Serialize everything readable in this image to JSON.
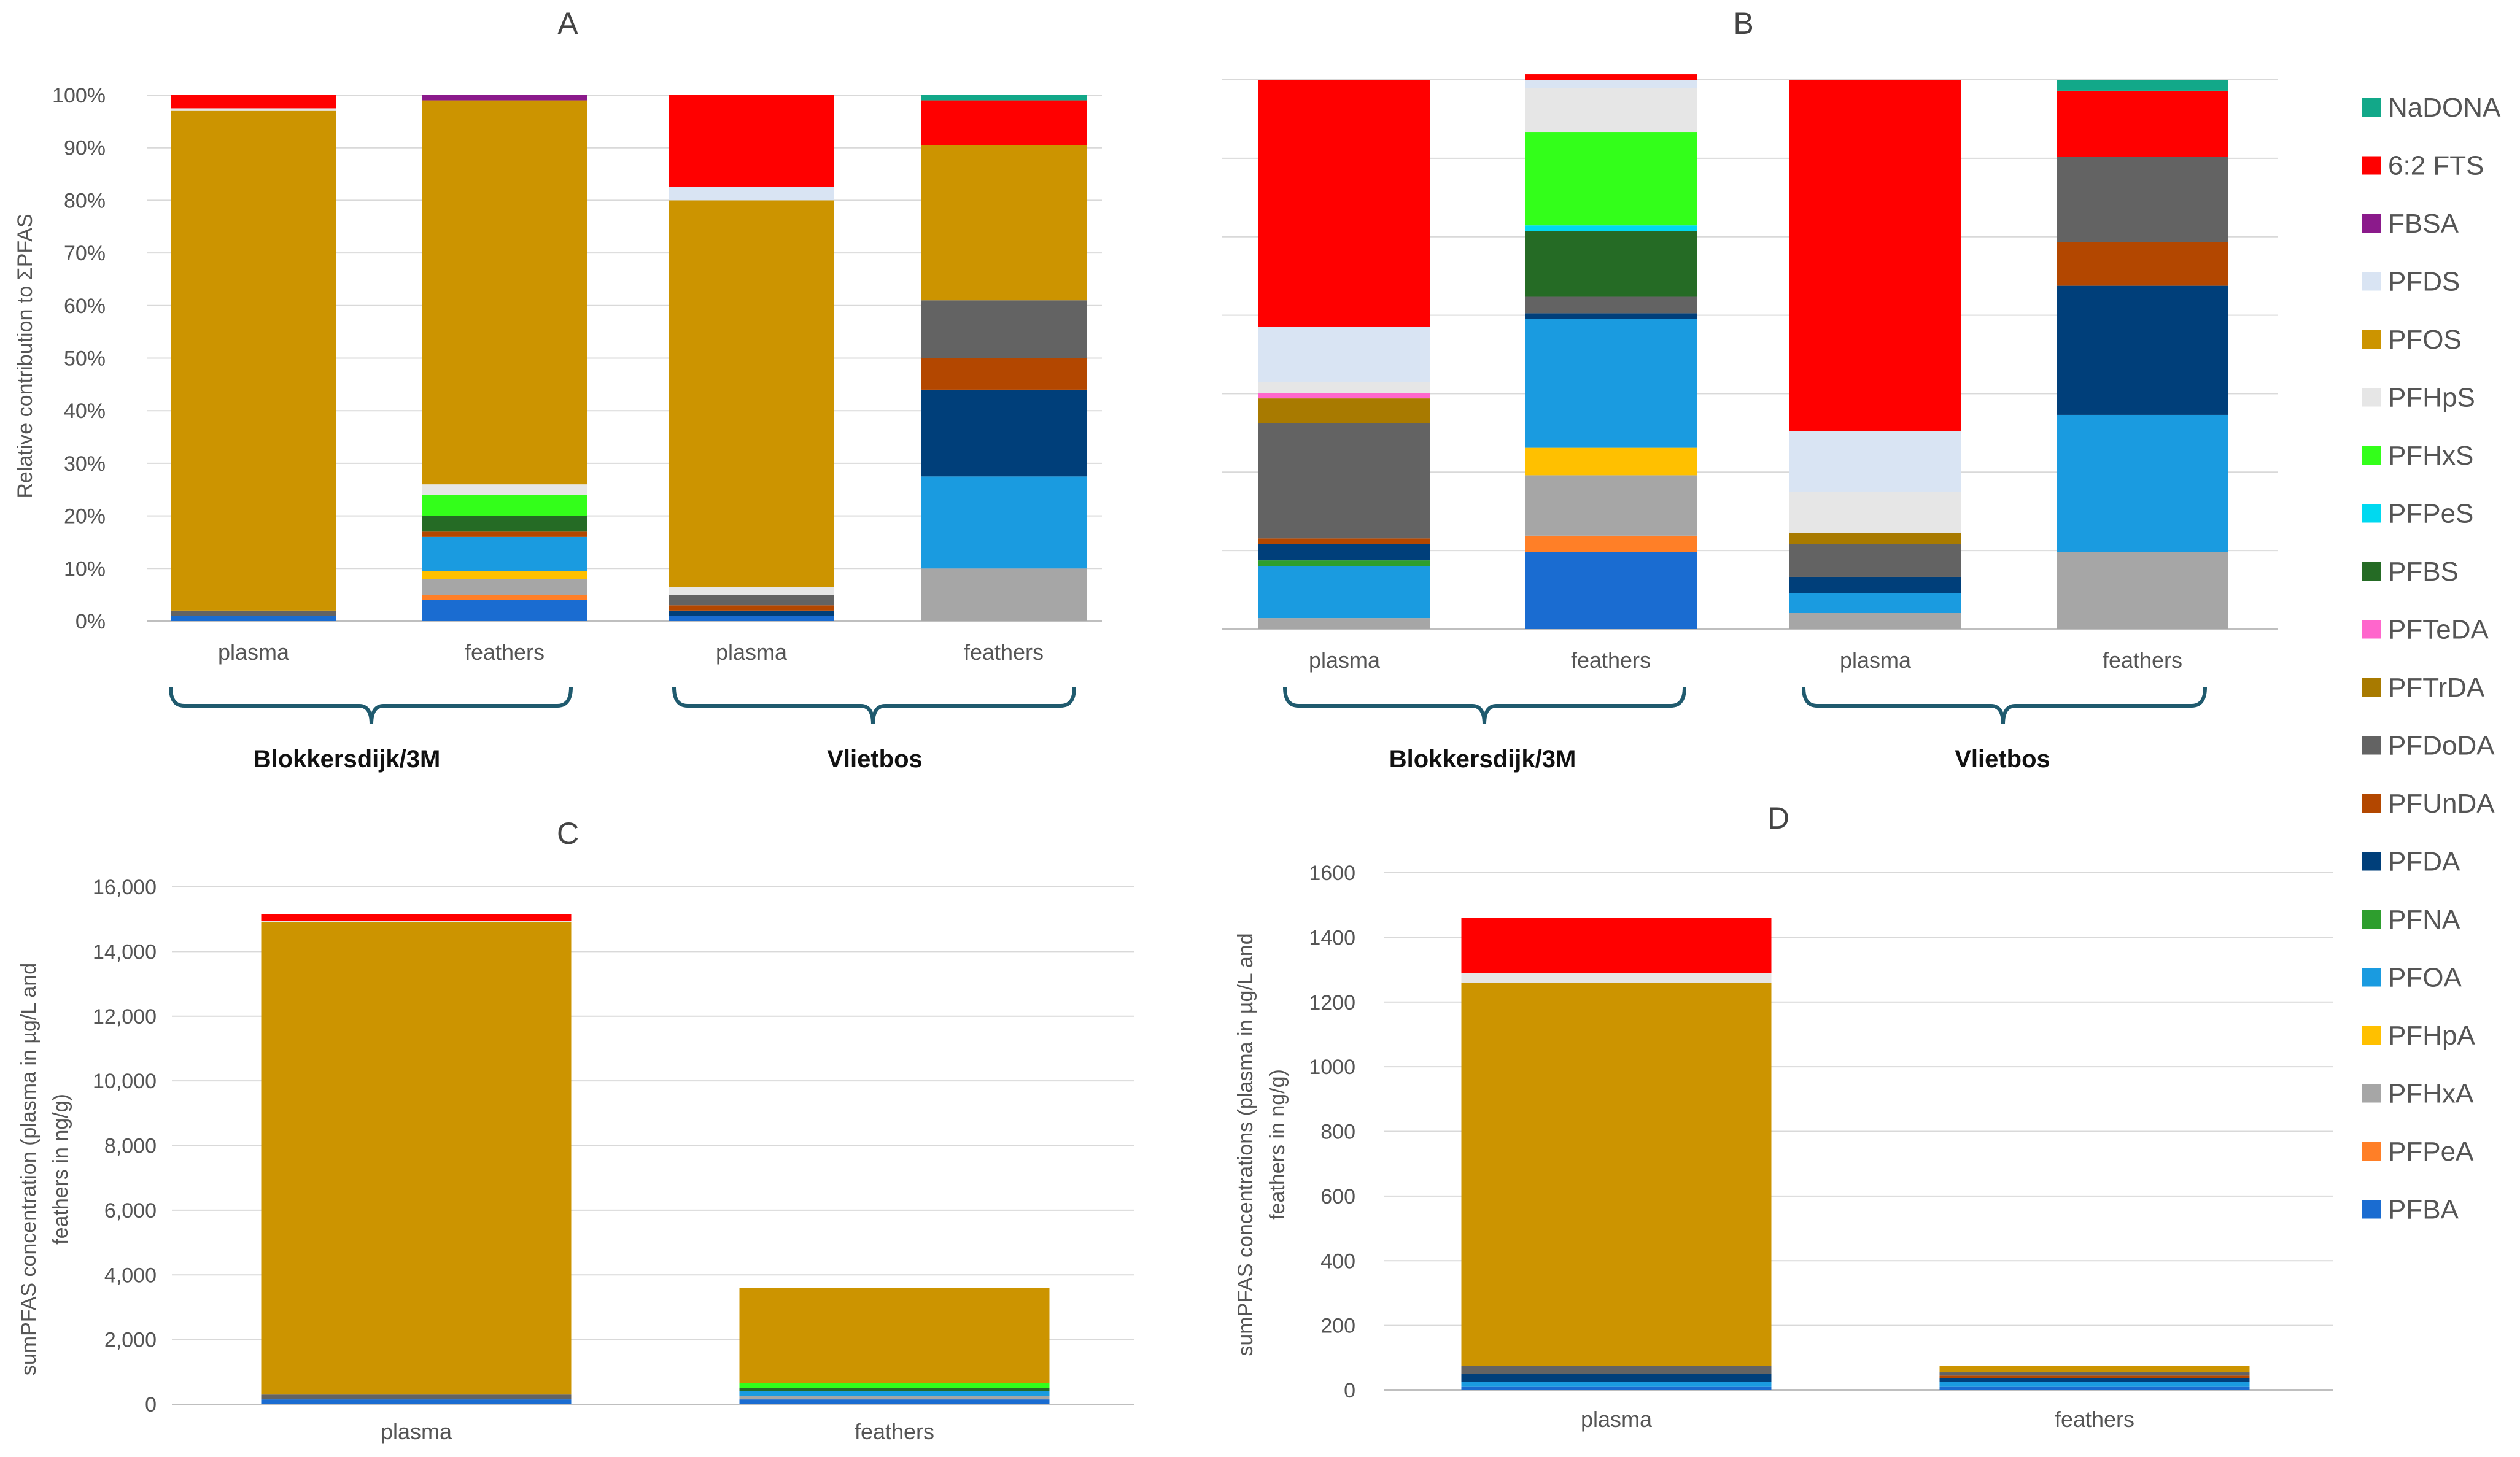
{
  "colors": {
    "NaDONA": "#12a889",
    "6:2 FTS": "#ff0000",
    "FBSA": "#8b1a8b",
    "PFDS": "#d9e4f3",
    "PFOS": "#cc9400",
    "PFHpS": "#e6e6e6",
    "PFHxS": "#33ff1a",
    "PFPeS": "#00d9f0",
    "PFBS": "#256b25",
    "PFTeDA": "#ff66cc",
    "PFTrDA": "#a87a00",
    "PFDoDA": "#636363",
    "PFUnDA": "#b34700",
    "PFDA": "#003f7a",
    "PFNA": "#2e9e2e",
    "PFOA": "#1a9be0",
    "PFHpA": "#ffc000",
    "PFHxA": "#a6a6a6",
    "PFPeA": "#ff7f27",
    "PFBA": "#1a6cd1"
  },
  "legend": [
    "NaDONA",
    "6:2 FTS",
    "FBSA",
    "PFDS",
    "PFOS",
    "PFHpS",
    "PFHxS",
    "PFPeS",
    "PFBS",
    "PFTeDA",
    "PFTrDA",
    "PFDoDA",
    "PFUnDA",
    "PFDA",
    "PFNA",
    "PFOA",
    "PFHpA",
    "PFHxA",
    "PFPeA",
    "PFBA"
  ],
  "chart_data": [
    {
      "panel": "A",
      "type": "bar",
      "stacked": true,
      "ylabel": "Relative contribution to ΣPFAS",
      "ylim": [
        0,
        100
      ],
      "yticks": [
        "0%",
        "10%",
        "20%",
        "30%",
        "40%",
        "50%",
        "60%",
        "70%",
        "80%",
        "90%",
        "100%"
      ],
      "groups": [
        "Blokkersdijk/3M",
        "Vlietbos"
      ],
      "categories": [
        "plasma",
        "feathers",
        "plasma",
        "feathers"
      ],
      "bars": [
        {
          "segments": [
            [
              "PFBA",
              1
            ],
            [
              "PFDoDA",
              1
            ],
            [
              "PFOS",
              95
            ],
            [
              "PFHpS",
              0.5
            ],
            [
              "6:2 FTS",
              2.5
            ]
          ]
        },
        {
          "segments": [
            [
              "PFBA",
              4
            ],
            [
              "PFPeA",
              1
            ],
            [
              "PFHxA",
              3
            ],
            [
              "PFHpA",
              1.5
            ],
            [
              "PFOA",
              6.5
            ],
            [
              "PFUnDA",
              1
            ],
            [
              "PFBS",
              3
            ],
            [
              "PFHxS",
              4
            ],
            [
              "PFHpS",
              2
            ],
            [
              "PFOS",
              73
            ],
            [
              "FBSA",
              1
            ]
          ]
        },
        {
          "segments": [
            [
              "PFBA",
              1
            ],
            [
              "PFDA",
              1
            ],
            [
              "PFUnDA",
              1
            ],
            [
              "PFDoDA",
              2
            ],
            [
              "PFHpS",
              1.5
            ],
            [
              "PFOS",
              73.5
            ],
            [
              "PFDS",
              2.5
            ],
            [
              "6:2 FTS",
              17.5
            ]
          ]
        },
        {
          "segments": [
            [
              "PFHxA",
              10
            ],
            [
              "PFOA",
              17.5
            ],
            [
              "PFDA",
              16.5
            ],
            [
              "PFUnDA",
              6
            ],
            [
              "PFDoDA",
              11
            ],
            [
              "PFOS",
              29.5
            ],
            [
              "6:2 FTS",
              8.5
            ],
            [
              "NaDONA",
              1
            ]
          ]
        }
      ]
    },
    {
      "panel": "B",
      "type": "bar",
      "stacked": true,
      "ylim": [
        0,
        100
      ],
      "groups": [
        "Blokkersdijk/3M",
        "Vlietbos"
      ],
      "categories": [
        "plasma",
        "feathers",
        "plasma",
        "feathers"
      ],
      "bars": [
        {
          "segments": [
            [
              "PFHxA",
              2
            ],
            [
              "PFOA",
              9.5
            ],
            [
              "PFNA",
              1
            ],
            [
              "PFDA",
              3
            ],
            [
              "PFUnDA",
              1
            ],
            [
              "PFDoDA",
              21
            ],
            [
              "PFTrDA",
              4.5
            ],
            [
              "PFTeDA",
              1
            ],
            [
              "PFHpS",
              2
            ],
            [
              "PFDS",
              10
            ],
            [
              "6:2 FTS",
              45
            ]
          ]
        },
        {
          "segments": [
            [
              "PFBA",
              14
            ],
            [
              "PFPeA",
              3
            ],
            [
              "PFHxA",
              11
            ],
            [
              "PFHpA",
              5
            ],
            [
              "PFOA",
              23.5
            ],
            [
              "PFDA",
              1
            ],
            [
              "PFDoDA",
              3
            ],
            [
              "PFBS",
              12
            ],
            [
              "PFPeS",
              1
            ],
            [
              "PFHxS",
              17
            ],
            [
              "PFHpS",
              8
            ],
            [
              "PFDS",
              1.5
            ],
            [
              "6:2 FTS",
              1
            ]
          ]
        },
        {
          "segments": [
            [
              "PFHxA",
              3
            ],
            [
              "PFOA",
              3.5
            ],
            [
              "PFDA",
              3
            ],
            [
              "PFDoDA",
              6
            ],
            [
              "PFTrDA",
              2
            ],
            [
              "PFHpS",
              7.5
            ],
            [
              "PFDS",
              11
            ],
            [
              "6:2 FTS",
              64
            ]
          ]
        },
        {
          "segments": [
            [
              "PFHxA",
              14
            ],
            [
              "PFOA",
              25
            ],
            [
              "PFDA",
              23.5
            ],
            [
              "PFUnDA",
              8
            ],
            [
              "PFDoDA",
              15.5
            ],
            [
              "6:2 FTS",
              12
            ],
            [
              "NaDONA",
              2
            ]
          ]
        }
      ]
    },
    {
      "panel": "C",
      "type": "bar",
      "stacked": true,
      "ylabel_lines": [
        "sumPFAS concentration (plasma in µg/L and",
        "feathers in ng/g)"
      ],
      "ylim": [
        0,
        16000
      ],
      "yticks": [
        "0",
        "2,000",
        "4,000",
        "6,000",
        "8,000",
        "10,000",
        "12,000",
        "14,000",
        "16,000"
      ],
      "categories": [
        "plasma",
        "feathers"
      ],
      "bars": [
        {
          "segments": [
            [
              "PFBA",
              150
            ],
            [
              "PFDoDA",
              150
            ],
            [
              "PFOS",
              14600
            ],
            [
              "PFHpS",
              50
            ],
            [
              "6:2 FTS",
              200
            ]
          ]
        },
        {
          "segments": [
            [
              "PFBA",
              150
            ],
            [
              "PFHxA",
              100
            ],
            [
              "PFOA",
              150
            ],
            [
              "PFBS",
              100
            ],
            [
              "PFHxS",
              150
            ],
            [
              "PFOS",
              2950
            ]
          ]
        }
      ]
    },
    {
      "panel": "D",
      "type": "bar",
      "stacked": true,
      "ylabel_lines": [
        "sumPFAS concentrations (plasma in µg/L and",
        "feathers in ng/g)"
      ],
      "ylim": [
        0,
        1600
      ],
      "yticks": [
        "0",
        "200",
        "400",
        "600",
        "800",
        "1000",
        "1200",
        "1400",
        "1600"
      ],
      "categories": [
        "plasma",
        "feathers"
      ],
      "bars": [
        {
          "segments": [
            [
              "PFBA",
              10
            ],
            [
              "PFOA",
              15
            ],
            [
              "PFDA",
              25
            ],
            [
              "PFDoDA",
              25
            ],
            [
              "PFOS",
              1185
            ],
            [
              "PFHpS",
              30
            ],
            [
              "6:2 FTS",
              170
            ]
          ]
        },
        {
          "segments": [
            [
              "PFBA",
              10
            ],
            [
              "PFOA",
              15
            ],
            [
              "PFDA",
              12
            ],
            [
              "PFUnDA",
              8
            ],
            [
              "PFDoDA",
              10
            ],
            [
              "PFOS",
              20
            ]
          ]
        }
      ]
    }
  ]
}
